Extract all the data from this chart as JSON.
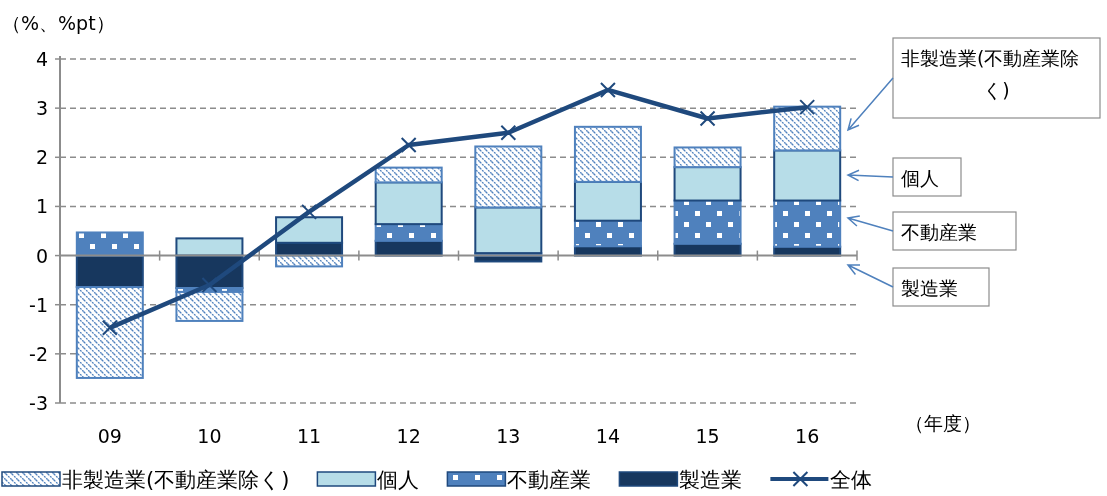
{
  "chart_data": {
    "type": "bar",
    "stacked": true,
    "categories": [
      "09",
      "10",
      "11",
      "12",
      "13",
      "14",
      "15",
      "16"
    ],
    "series": [
      {
        "name": "製造業",
        "color": "#17375e",
        "values": [
          -0.64,
          -0.66,
          0.26,
          0.3,
          -0.12,
          0.19,
          0.24,
          0.18
        ]
      },
      {
        "name": "不動産業",
        "color": "#4f81bd",
        "values": [
          0.47,
          -0.08,
          0,
          0.34,
          0.05,
          0.52,
          0.88,
          0.94
        ]
      },
      {
        "name": "個人",
        "color": "#b7dde8",
        "values": [
          0,
          0.35,
          0.52,
          0.85,
          0.93,
          0.79,
          0.68,
          1.02
        ]
      },
      {
        "name": "非製造業(不動産業除く)",
        "color": "#4f81bd",
        "values": [
          -1.85,
          -0.59,
          -0.22,
          0.3,
          1.24,
          1.12,
          0.4,
          0.89
        ]
      },
      {
        "name": "全体",
        "type": "line",
        "color": "#1f497d",
        "marker": "cross",
        "values": [
          -1.47,
          -0.6,
          0.89,
          2.25,
          2.5,
          3.37,
          2.79,
          3.02
        ]
      }
    ],
    "ylabel": "（%、%pt）",
    "xlabel": "（年度）",
    "ylim": [
      -3,
      4
    ],
    "yticks": [
      -3,
      -2,
      -1,
      0,
      1,
      2,
      3,
      4
    ],
    "grid": "y",
    "legend": "bottom",
    "annotations": [
      "非製造業(不動産業除く)",
      "個人",
      "不動産業",
      "製造業"
    ]
  }
}
